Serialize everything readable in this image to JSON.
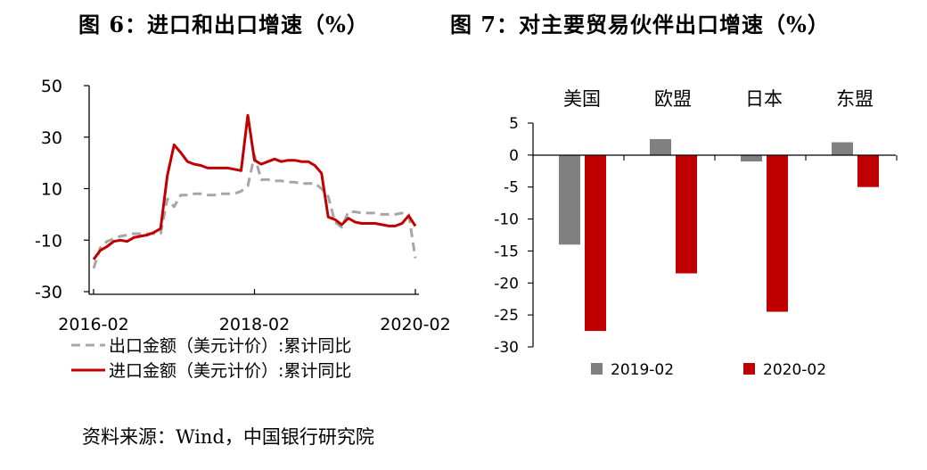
{
  "titles": {
    "left": "图 6：进口和出口增速（%）",
    "right": "图 7：对主要贸易伙伴出口增速（%）"
  },
  "source": "资料来源：Wind，中国银行研究院",
  "colors": {
    "export": "#a6a6a6",
    "import": "#c00000",
    "bar2019": "#808080",
    "bar2020": "#c00000"
  },
  "chart_data": [
    {
      "type": "line",
      "x_tick_labels": [
        "2016-02",
        "2018-02",
        "2020-02"
      ],
      "y_ticks": [
        50,
        30,
        10,
        -10,
        -30
      ],
      "ylim": [
        -30,
        50
      ],
      "xlim": [
        "2016-02",
        "2020-02"
      ],
      "x": [
        "2016-02",
        "2016-03",
        "2016-04",
        "2016-05",
        "2016-06",
        "2016-07",
        "2016-08",
        "2016-09",
        "2016-10",
        "2016-11",
        "2016-12",
        "2017-01",
        "2017-02",
        "2017-03",
        "2017-04",
        "2017-05",
        "2017-06",
        "2017-07",
        "2017-08",
        "2017-09",
        "2017-10",
        "2017-11",
        "2017-12",
        "2018-01",
        "2018-02",
        "2018-03",
        "2018-04",
        "2018-05",
        "2018-06",
        "2018-07",
        "2018-08",
        "2018-09",
        "2018-10",
        "2018-11",
        "2018-12",
        "2019-01",
        "2019-02",
        "2019-03",
        "2019-04",
        "2019-05",
        "2019-06",
        "2019-07",
        "2019-08",
        "2019-09",
        "2019-10",
        "2019-11",
        "2019-12",
        "2020-01",
        "2020-02"
      ],
      "series": [
        {
          "name": "出口金额（美元计价）:累计同比",
          "style": "dashed",
          "values": [
            -21,
            -13,
            -10.5,
            -9.5,
            -8.5,
            -8,
            -7.5,
            -7.5,
            -7.5,
            -7.5,
            -7.5,
            6,
            3,
            7.5,
            7.5,
            8,
            8,
            7.5,
            7.5,
            8,
            8,
            8,
            9,
            11,
            23,
            13.5,
            13.5,
            13,
            13,
            12.5,
            12.5,
            12,
            12,
            12,
            10,
            7,
            -3,
            -5,
            1,
            1,
            0.5,
            0.5,
            0.5,
            0,
            0,
            0,
            0.5,
            0,
            -17
          ]
        },
        {
          "name": "进口金额（美元计价）:累计同比",
          "style": "solid",
          "values": [
            -17.5,
            -14,
            -12.5,
            -10.5,
            -10,
            -10.5,
            -9,
            -8.5,
            -8,
            -7,
            -5.5,
            15,
            27,
            24,
            20.5,
            19.5,
            19,
            18,
            18,
            18,
            18,
            17.5,
            17,
            38.5,
            21,
            19.5,
            20.5,
            21.5,
            20.5,
            21,
            21,
            20.5,
            20.5,
            19,
            16,
            -1,
            -2,
            -4,
            -1.5,
            -3,
            -3.5,
            -3.5,
            -3.5,
            -4,
            -4.5,
            -4.5,
            -3.5,
            -0.5,
            -4.5
          ]
        }
      ]
    },
    {
      "type": "bar",
      "categories": [
        "美国",
        "欧盟",
        "日本",
        "东盟"
      ],
      "y_ticks": [
        5,
        0,
        -5,
        -10,
        -15,
        -20,
        -25,
        -30
      ],
      "ylim": [
        -30,
        5
      ],
      "series": [
        {
          "name": "2019-02",
          "values": [
            -14,
            2.5,
            -1,
            2
          ]
        },
        {
          "name": "2020-02",
          "values": [
            -27.5,
            -18.5,
            -24.5,
            -5
          ]
        }
      ]
    }
  ]
}
